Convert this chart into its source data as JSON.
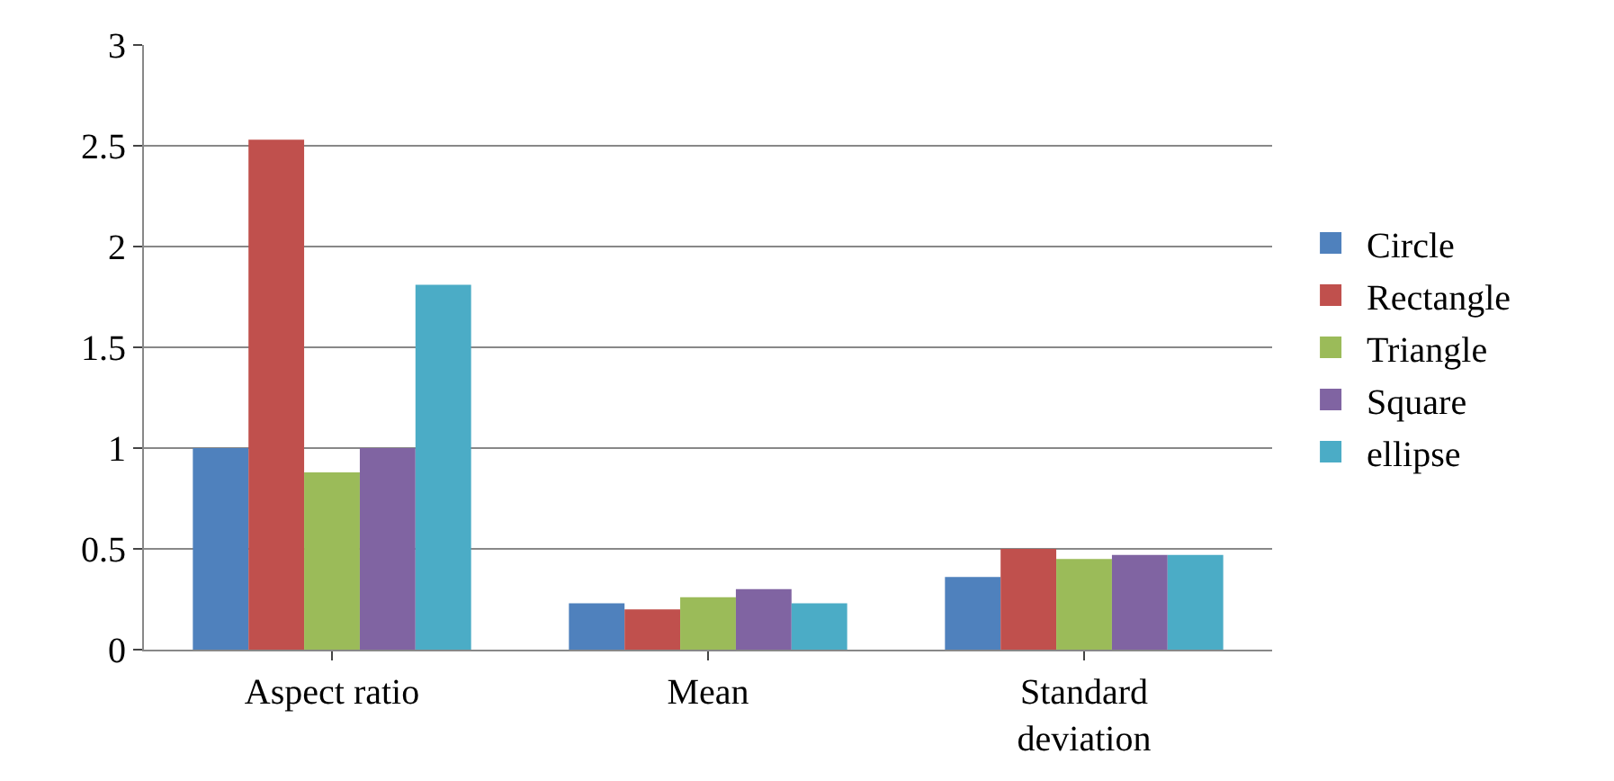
{
  "chart_data": {
    "type": "bar",
    "categories": [
      "Aspect ratio",
      "Mean",
      "Standard deviation"
    ],
    "series": [
      {
        "name": "Circle",
        "color": "#4f81bd",
        "values": [
          1.0,
          0.23,
          0.36
        ]
      },
      {
        "name": "Rectangle",
        "color": "#c0504d",
        "values": [
          2.53,
          0.2,
          0.5
        ]
      },
      {
        "name": "Triangle",
        "color": "#9bbb59",
        "values": [
          0.88,
          0.26,
          0.45
        ]
      },
      {
        "name": "Square",
        "color": "#8064a2",
        "values": [
          1.0,
          0.3,
          0.47
        ]
      },
      {
        "name": "ellipse",
        "color": "#4bacc6",
        "values": [
          1.81,
          0.23,
          0.47
        ]
      }
    ],
    "ylim": [
      0,
      3
    ],
    "yticks": [
      {
        "value": 0,
        "label": "0"
      },
      0.5,
      {
        "value": 1,
        "label": "1"
      },
      1.5,
      {
        "value": 2,
        "label": "2"
      },
      2.5,
      {
        "value": 3,
        "label": "3"
      }
    ],
    "grid": "y",
    "legend": "right"
  }
}
